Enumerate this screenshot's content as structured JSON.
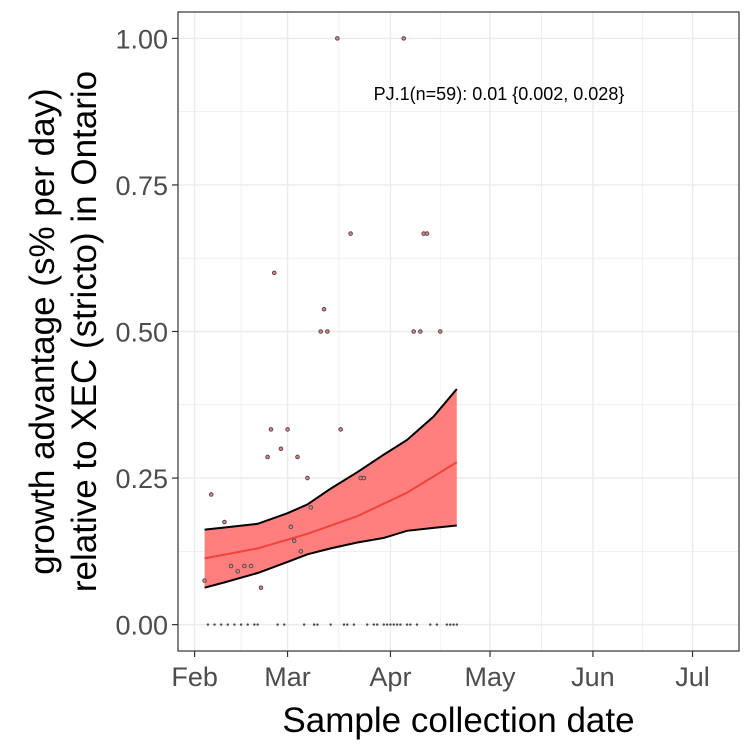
{
  "chart_data": {
    "type": "scatter",
    "title": "",
    "xlabel": "Sample collection date",
    "ylabel_lines": [
      "growth advantage (s% per day)",
      "relative to XEC (stricto) in Ontario"
    ],
    "annotation": "PJ.1(n=59): 0.01 {0.002, 0.028}",
    "xlim": [
      "2025-01-27",
      "2025-07-15"
    ],
    "ylim": [
      -0.045,
      1.045
    ],
    "x_ticks": [
      {
        "date": "2025-02-01",
        "label": "Feb"
      },
      {
        "date": "2025-03-01",
        "label": "Mar"
      },
      {
        "date": "2025-04-01",
        "label": "Apr"
      },
      {
        "date": "2025-05-01",
        "label": "May"
      },
      {
        "date": "2025-06-01",
        "label": "Jun"
      },
      {
        "date": "2025-07-01",
        "label": "Jul"
      }
    ],
    "y_ticks": [
      {
        "value": 0.0,
        "label": "0.00"
      },
      {
        "value": 0.25,
        "label": "0.25"
      },
      {
        "value": 0.5,
        "label": "0.50"
      },
      {
        "value": 0.75,
        "label": "0.75"
      },
      {
        "value": 1.0,
        "label": "1.00"
      }
    ],
    "grid": true,
    "colors": {
      "ribbon_fill": "#ff7f7f",
      "fit_line": "#f0433a",
      "ribbon_edge": "#000000",
      "point_fill": "#f08080",
      "point_stroke": "#4d4d4d",
      "grid_major": "#ebebeb",
      "panel_border": "#333333"
    },
    "fit": {
      "x": [
        "2025-02-04",
        "2025-02-20",
        "2025-03-07",
        "2025-03-22",
        "2025-04-06",
        "2025-04-21"
      ],
      "y": [
        0.113,
        0.13,
        0.155,
        0.185,
        0.225,
        0.277
      ]
    },
    "ribbon_upper": {
      "x": [
        "2025-02-04",
        "2025-02-09",
        "2025-02-20",
        "2025-03-01",
        "2025-03-07",
        "2025-03-14",
        "2025-03-22",
        "2025-03-30",
        "2025-04-06",
        "2025-04-14",
        "2025-04-21"
      ],
      "y": [
        0.162,
        0.165,
        0.172,
        0.19,
        0.205,
        0.232,
        0.26,
        0.29,
        0.315,
        0.355,
        0.402
      ]
    },
    "ribbon_lower": {
      "x": [
        "2025-02-04",
        "2025-02-10",
        "2025-02-20",
        "2025-03-01",
        "2025-03-07",
        "2025-03-14",
        "2025-03-22",
        "2025-03-30",
        "2025-04-06",
        "2025-04-14",
        "2025-04-21"
      ],
      "y": [
        0.063,
        0.072,
        0.088,
        0.107,
        0.12,
        0.13,
        0.14,
        0.148,
        0.16,
        0.165,
        0.169
      ]
    },
    "points": [
      {
        "x": "2025-02-04",
        "y": 0.075
      },
      {
        "x": "2025-02-06",
        "y": 0.222
      },
      {
        "x": "2025-02-10",
        "y": 0.175
      },
      {
        "x": "2025-02-12",
        "y": 0.1
      },
      {
        "x": "2025-02-14",
        "y": 0.091
      },
      {
        "x": "2025-02-16",
        "y": 0.1
      },
      {
        "x": "2025-02-18",
        "y": 0.1
      },
      {
        "x": "2025-02-21",
        "y": 0.063
      },
      {
        "x": "2025-02-23",
        "y": 0.286
      },
      {
        "x": "2025-02-24",
        "y": 0.333
      },
      {
        "x": "2025-02-25",
        "y": 0.6
      },
      {
        "x": "2025-02-27",
        "y": 0.3
      },
      {
        "x": "2025-03-01",
        "y": 0.333
      },
      {
        "x": "2025-03-02",
        "y": 0.167
      },
      {
        "x": "2025-03-03",
        "y": 0.143
      },
      {
        "x": "2025-03-04",
        "y": 0.286
      },
      {
        "x": "2025-03-05",
        "y": 0.125
      },
      {
        "x": "2025-03-07",
        "y": 0.25
      },
      {
        "x": "2025-03-08",
        "y": 0.2
      },
      {
        "x": "2025-03-11",
        "y": 0.5
      },
      {
        "x": "2025-03-12",
        "y": 0.538
      },
      {
        "x": "2025-03-13",
        "y": 0.5
      },
      {
        "x": "2025-03-16",
        "y": 1.0
      },
      {
        "x": "2025-03-17",
        "y": 0.333
      },
      {
        "x": "2025-03-20",
        "y": 0.667
      },
      {
        "x": "2025-03-23",
        "y": 0.25
      },
      {
        "x": "2025-03-24",
        "y": 0.25
      },
      {
        "x": "2025-04-05",
        "y": 1.0
      },
      {
        "x": "2025-04-08",
        "y": 0.5
      },
      {
        "x": "2025-04-10",
        "y": 0.5
      },
      {
        "x": "2025-04-11",
        "y": 0.667
      },
      {
        "x": "2025-04-12",
        "y": 0.667
      },
      {
        "x": "2025-04-16",
        "y": 0.5
      },
      {
        "x": "2025-02-05",
        "y": 0
      },
      {
        "x": "2025-02-07",
        "y": 0
      },
      {
        "x": "2025-02-09",
        "y": 0
      },
      {
        "x": "2025-02-11",
        "y": 0
      },
      {
        "x": "2025-02-13",
        "y": 0
      },
      {
        "x": "2025-02-15",
        "y": 0
      },
      {
        "x": "2025-02-17",
        "y": 0
      },
      {
        "x": "2025-02-19",
        "y": 0
      },
      {
        "x": "2025-02-20",
        "y": 0
      },
      {
        "x": "2025-02-26",
        "y": 0
      },
      {
        "x": "2025-02-28",
        "y": 0
      },
      {
        "x": "2025-03-06",
        "y": 0
      },
      {
        "x": "2025-03-09",
        "y": 0
      },
      {
        "x": "2025-03-10",
        "y": 0
      },
      {
        "x": "2025-03-14",
        "y": 0
      },
      {
        "x": "2025-03-18",
        "y": 0
      },
      {
        "x": "2025-03-19",
        "y": 0
      },
      {
        "x": "2025-03-21",
        "y": 0
      },
      {
        "x": "2025-03-25",
        "y": 0
      },
      {
        "x": "2025-03-27",
        "y": 0
      },
      {
        "x": "2025-03-28",
        "y": 0
      },
      {
        "x": "2025-03-30",
        "y": 0
      },
      {
        "x": "2025-03-31",
        "y": 0
      },
      {
        "x": "2025-04-01",
        "y": 0
      },
      {
        "x": "2025-04-02",
        "y": 0
      },
      {
        "x": "2025-04-03",
        "y": 0
      },
      {
        "x": "2025-04-04",
        "y": 0
      },
      {
        "x": "2025-04-06",
        "y": 0
      },
      {
        "x": "2025-04-07",
        "y": 0
      },
      {
        "x": "2025-04-09",
        "y": 0
      },
      {
        "x": "2025-04-13",
        "y": 0
      },
      {
        "x": "2025-04-15",
        "y": 0
      },
      {
        "x": "2025-04-18",
        "y": 0
      },
      {
        "x": "2025-04-19",
        "y": 0
      },
      {
        "x": "2025-04-20",
        "y": 0
      },
      {
        "x": "2025-04-21",
        "y": 0
      }
    ]
  }
}
